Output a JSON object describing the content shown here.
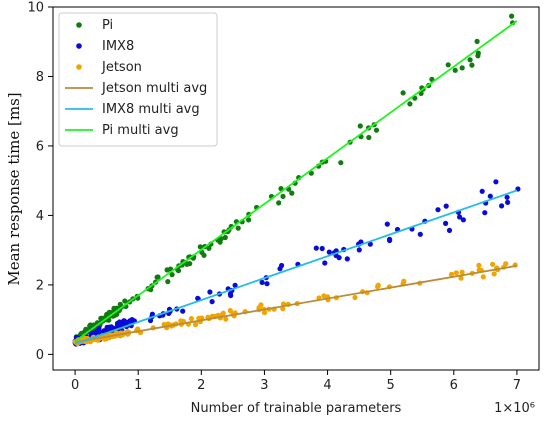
{
  "chart_data": {
    "type": "scatter",
    "xlabel": "Number of trainable parameters",
    "ylabel": "Mean response time [ms]",
    "x_multiplier": "1×10⁶",
    "xlim": [
      -0.35,
      7.35
    ],
    "ylim": [
      -0.45,
      10.0
    ],
    "x_ticks": [
      0,
      1,
      2,
      3,
      4,
      5,
      6,
      7
    ],
    "y_ticks": [
      0,
      2,
      4,
      6,
      8,
      10
    ],
    "grid": false,
    "legend_position": "top-left",
    "colors": {
      "pi": "#117a11",
      "imx8": "#0b0bd8",
      "jetson": "#f0a500",
      "jetson_fit": "#b88c3a",
      "imx8_fit": "#26bde4",
      "pi_fit": "#1ef51e"
    },
    "series": [
      {
        "name": "Pi",
        "kind": "points",
        "slope": 1.3,
        "intercept": 0.4,
        "noise": 0.25
      },
      {
        "name": "IMX8",
        "kind": "points",
        "slope": 0.62,
        "intercept": 0.35,
        "noise": 0.3
      },
      {
        "name": "Jetson",
        "kind": "points",
        "slope": 0.32,
        "intercept": 0.35,
        "noise": 0.14
      },
      {
        "name": "Jetson multi avg",
        "kind": "line",
        "x": [
          0,
          7.0
        ],
        "y": [
          0.35,
          2.55
        ]
      },
      {
        "name": "IMX8 multi avg",
        "kind": "line",
        "x": [
          0,
          7.0
        ],
        "y": [
          0.3,
          4.72
        ]
      },
      {
        "name": "Pi multi avg",
        "kind": "line",
        "x": [
          0,
          7.0
        ],
        "y": [
          0.38,
          9.6
        ]
      }
    ]
  }
}
